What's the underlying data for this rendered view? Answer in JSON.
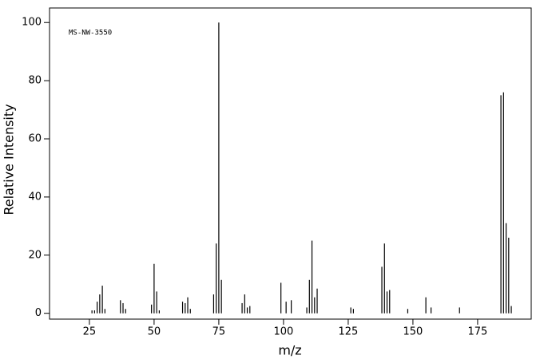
{
  "chart_data": {
    "type": "stem",
    "annotation": "MS-NW-3550",
    "xlabel": "m/z",
    "ylabel": "Relative Intensity",
    "color": "#000000",
    "xlim": [
      9.6,
      195.7
    ],
    "ylim": [
      -2,
      105
    ],
    "xticks": [
      25,
      50,
      75,
      100,
      125,
      150,
      175
    ],
    "yticks": [
      0,
      20,
      40,
      60,
      80,
      100
    ],
    "x": [
      26,
      27,
      28,
      29,
      30,
      31,
      37,
      38,
      39,
      49,
      50,
      51,
      52,
      61,
      62,
      63,
      64,
      73,
      74,
      75,
      76,
      84,
      85,
      86,
      87,
      99,
      101,
      103,
      109,
      110,
      111,
      112,
      113,
      126,
      127,
      138,
      139,
      140,
      141,
      148,
      155,
      157,
      168,
      184,
      185,
      186,
      187,
      188
    ],
    "values": [
      1,
      1,
      4,
      6.5,
      9.5,
      1.5,
      4.5,
      3.5,
      1.5,
      3,
      17,
      7.5,
      1,
      4,
      3.5,
      5.5,
      1.5,
      6.5,
      24,
      100,
      11.5,
      3.5,
      6.5,
      2,
      2.5,
      10.5,
      4,
      4.5,
      2,
      11.5,
      25,
      5.5,
      8.5,
      2,
      1.5,
      16,
      24,
      7.5,
      8,
      1.5,
      5.5,
      2,
      2,
      75,
      76,
      31,
      26,
      2.5
    ]
  }
}
